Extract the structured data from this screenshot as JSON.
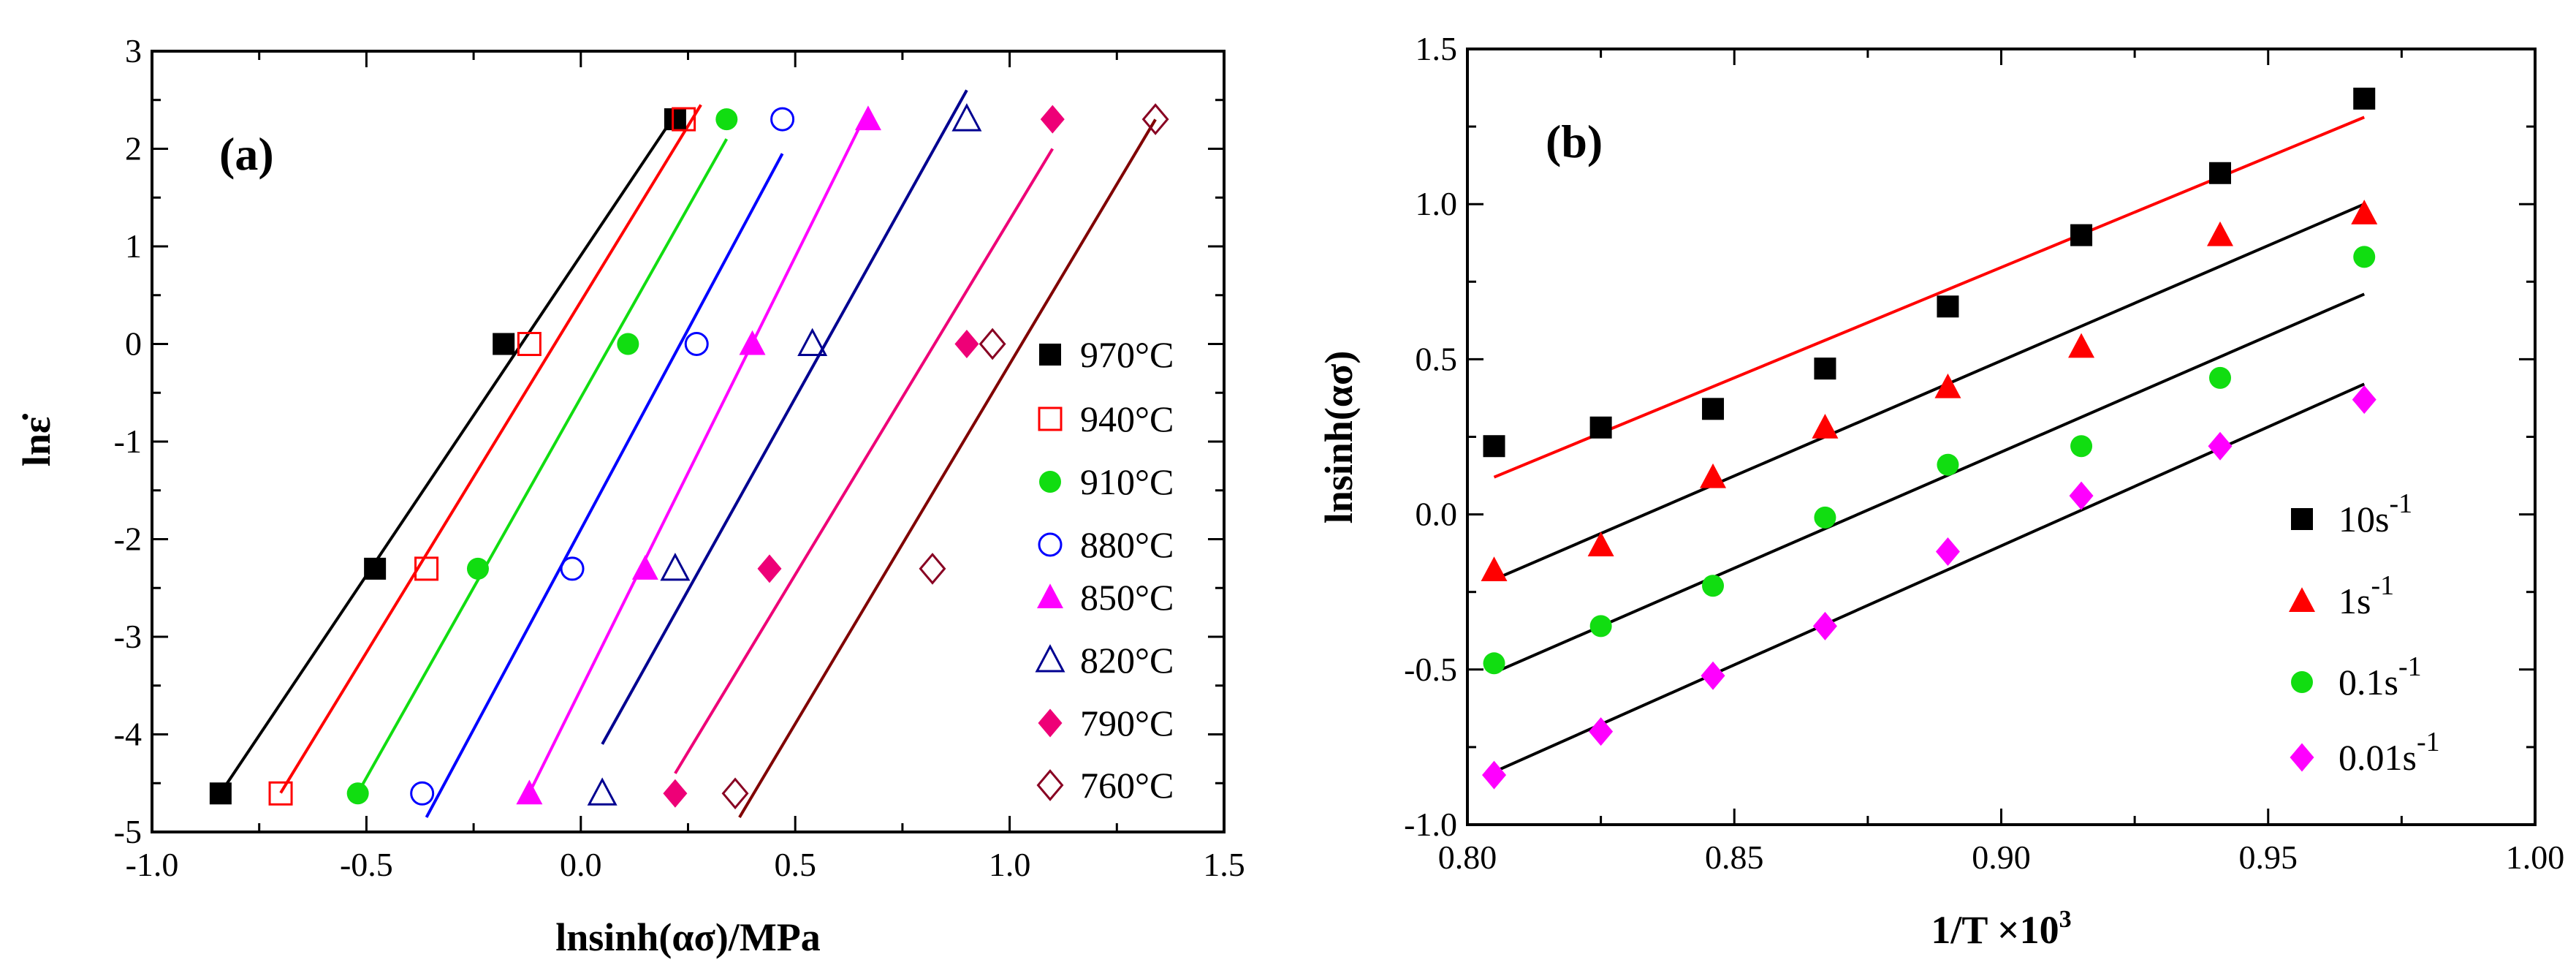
{
  "chart_data": [
    {
      "type": "scatter",
      "panel_label": "(a)",
      "xlabel": "lnsinh(ασ)/MPa",
      "ylabel": "lnε̇",
      "xlim": [
        -1.0,
        1.5
      ],
      "ylim": [
        -5,
        3
      ],
      "xticks": [
        -1.0,
        -0.5,
        0.0,
        0.5,
        1.0,
        1.5
      ],
      "xtick_labels": [
        "-1.0",
        "-0.5",
        "0.0",
        "0.5",
        "1.0",
        "1.5"
      ],
      "yticks": [
        -5,
        -4,
        -3,
        -2,
        -1,
        0,
        1,
        2,
        3
      ],
      "ytick_labels": [
        "-5",
        "-4",
        "-3",
        "-2",
        "-1",
        "0",
        "1",
        "2",
        "3"
      ],
      "grid": false,
      "legend_position": "right",
      "y_values": [
        2.3026,
        0,
        -2.3026,
        -4.6052
      ],
      "series": [
        {
          "name": "970°C",
          "marker": "square",
          "filled": true,
          "color": "#000000",
          "line_color": "#000000",
          "x": [
            0.22,
            -0.18,
            -0.48,
            -0.84
          ],
          "fit": [
            [
              -0.84,
              -4.6
            ],
            [
              0.22,
              2.35
            ]
          ]
        },
        {
          "name": "940°C",
          "marker": "square",
          "filled": false,
          "color": "#ff0000",
          "line_color": "#ff0000",
          "x": [
            0.24,
            -0.12,
            -0.36,
            -0.7
          ],
          "fit": [
            [
              -0.7,
              -4.6
            ],
            [
              0.28,
              2.45
            ]
          ]
        },
        {
          "name": "910°C",
          "marker": "circle",
          "filled": true,
          "color": "#11dd11",
          "line_color": "#11dd11",
          "x": [
            0.34,
            0.11,
            -0.24,
            -0.52
          ],
          "fit": [
            [
              -0.52,
              -4.6
            ],
            [
              0.34,
              2.1
            ]
          ]
        },
        {
          "name": "880°C",
          "marker": "circle",
          "filled": false,
          "color": "#0000ff",
          "line_color": "#0000ff",
          "x": [
            0.47,
            0.27,
            -0.02,
            -0.37
          ],
          "fit": [
            [
              -0.36,
              -4.85
            ],
            [
              0.47,
              1.95
            ]
          ]
        },
        {
          "name": "850°C",
          "marker": "triangle",
          "filled": true,
          "color": "#ff00ff",
          "line_color": "#ff00ff",
          "x": [
            0.67,
            0.4,
            0.15,
            -0.12
          ],
          "fit": [
            [
              -0.12,
              -4.6
            ],
            [
              0.67,
              2.4
            ]
          ]
        },
        {
          "name": "820°C",
          "marker": "triangle",
          "filled": false,
          "color": "#000090",
          "line_color": "#000090",
          "x": [
            0.9,
            0.54,
            0.22,
            0.05
          ],
          "fit": [
            [
              0.05,
              -4.1
            ],
            [
              0.9,
              2.6
            ]
          ]
        },
        {
          "name": "790°C",
          "marker": "diamond",
          "filled": true,
          "color": "#ee0077",
          "line_color": "#ee0077",
          "x": [
            1.1,
            0.9,
            0.44,
            0.22
          ],
          "fit": [
            [
              0.22,
              -4.4
            ],
            [
              1.1,
              2.0
            ]
          ]
        },
        {
          "name": "760°C",
          "marker": "diamond",
          "filled": false,
          "color": "#880022",
          "line_color": "#800000",
          "x": [
            1.34,
            0.96,
            0.82,
            0.36
          ],
          "fit": [
            [
              0.37,
              -4.85
            ],
            [
              1.34,
              2.3
            ]
          ]
        }
      ]
    },
    {
      "type": "scatter",
      "panel_label": "(b)",
      "xlabel": "1/T ×10",
      "xlabel_sup": "3",
      "ylabel": "lnsinh(ασ)",
      "xlim": [
        0.8,
        1.0
      ],
      "ylim": [
        -1.0,
        1.5
      ],
      "xticks": [
        0.8,
        0.85,
        0.9,
        0.95,
        1.0
      ],
      "xtick_labels": [
        "0.80",
        "0.85",
        "0.90",
        "0.95",
        "1.00"
      ],
      "yticks": [
        -1.0,
        -0.5,
        0.0,
        0.5,
        1.0,
        1.5
      ],
      "ytick_labels": [
        "-1.0",
        "-0.5",
        "0.0",
        "0.5",
        "1.0",
        "1.5"
      ],
      "grid": false,
      "legend_position": "right",
      "x_values": [
        0.805,
        0.825,
        0.846,
        0.867,
        0.89,
        0.915,
        0.941,
        0.968
      ],
      "series": [
        {
          "name": "10s",
          "sup": "-1",
          "marker": "square",
          "filled": true,
          "color": "#000000",
          "line_color": "#ff0000",
          "y": [
            0.22,
            0.28,
            0.34,
            0.47,
            0.67,
            0.9,
            1.1,
            1.34
          ],
          "fit": [
            [
              0.805,
              0.12
            ],
            [
              0.968,
              1.28
            ]
          ]
        },
        {
          "name": "1s",
          "sup": "-1",
          "marker": "triangle",
          "filled": true,
          "color": "#ff0000",
          "line_color": "#000000",
          "y": [
            -0.18,
            -0.1,
            0.12,
            0.28,
            0.41,
            0.54,
            0.9,
            0.97
          ],
          "fit": [
            [
              0.805,
              -0.21
            ],
            [
              0.968,
              1.0
            ]
          ]
        },
        {
          "name": "0.1s",
          "sup": "-1",
          "marker": "circle",
          "filled": true,
          "color": "#11dd11",
          "line_color": "#000000",
          "y": [
            -0.48,
            -0.36,
            -0.23,
            -0.01,
            0.16,
            0.22,
            0.44,
            0.83
          ],
          "fit": [
            [
              0.805,
              -0.51
            ],
            [
              0.968,
              0.71
            ]
          ]
        },
        {
          "name": "0.01s",
          "sup": "-1",
          "marker": "diamond",
          "filled": true,
          "color": "#ff00ff",
          "line_color": "#000000",
          "y": [
            -0.84,
            -0.7,
            -0.52,
            -0.36,
            -0.12,
            0.06,
            0.22,
            0.37
          ],
          "fit": [
            [
              0.805,
              -0.83
            ],
            [
              0.968,
              0.42
            ]
          ]
        }
      ]
    }
  ]
}
